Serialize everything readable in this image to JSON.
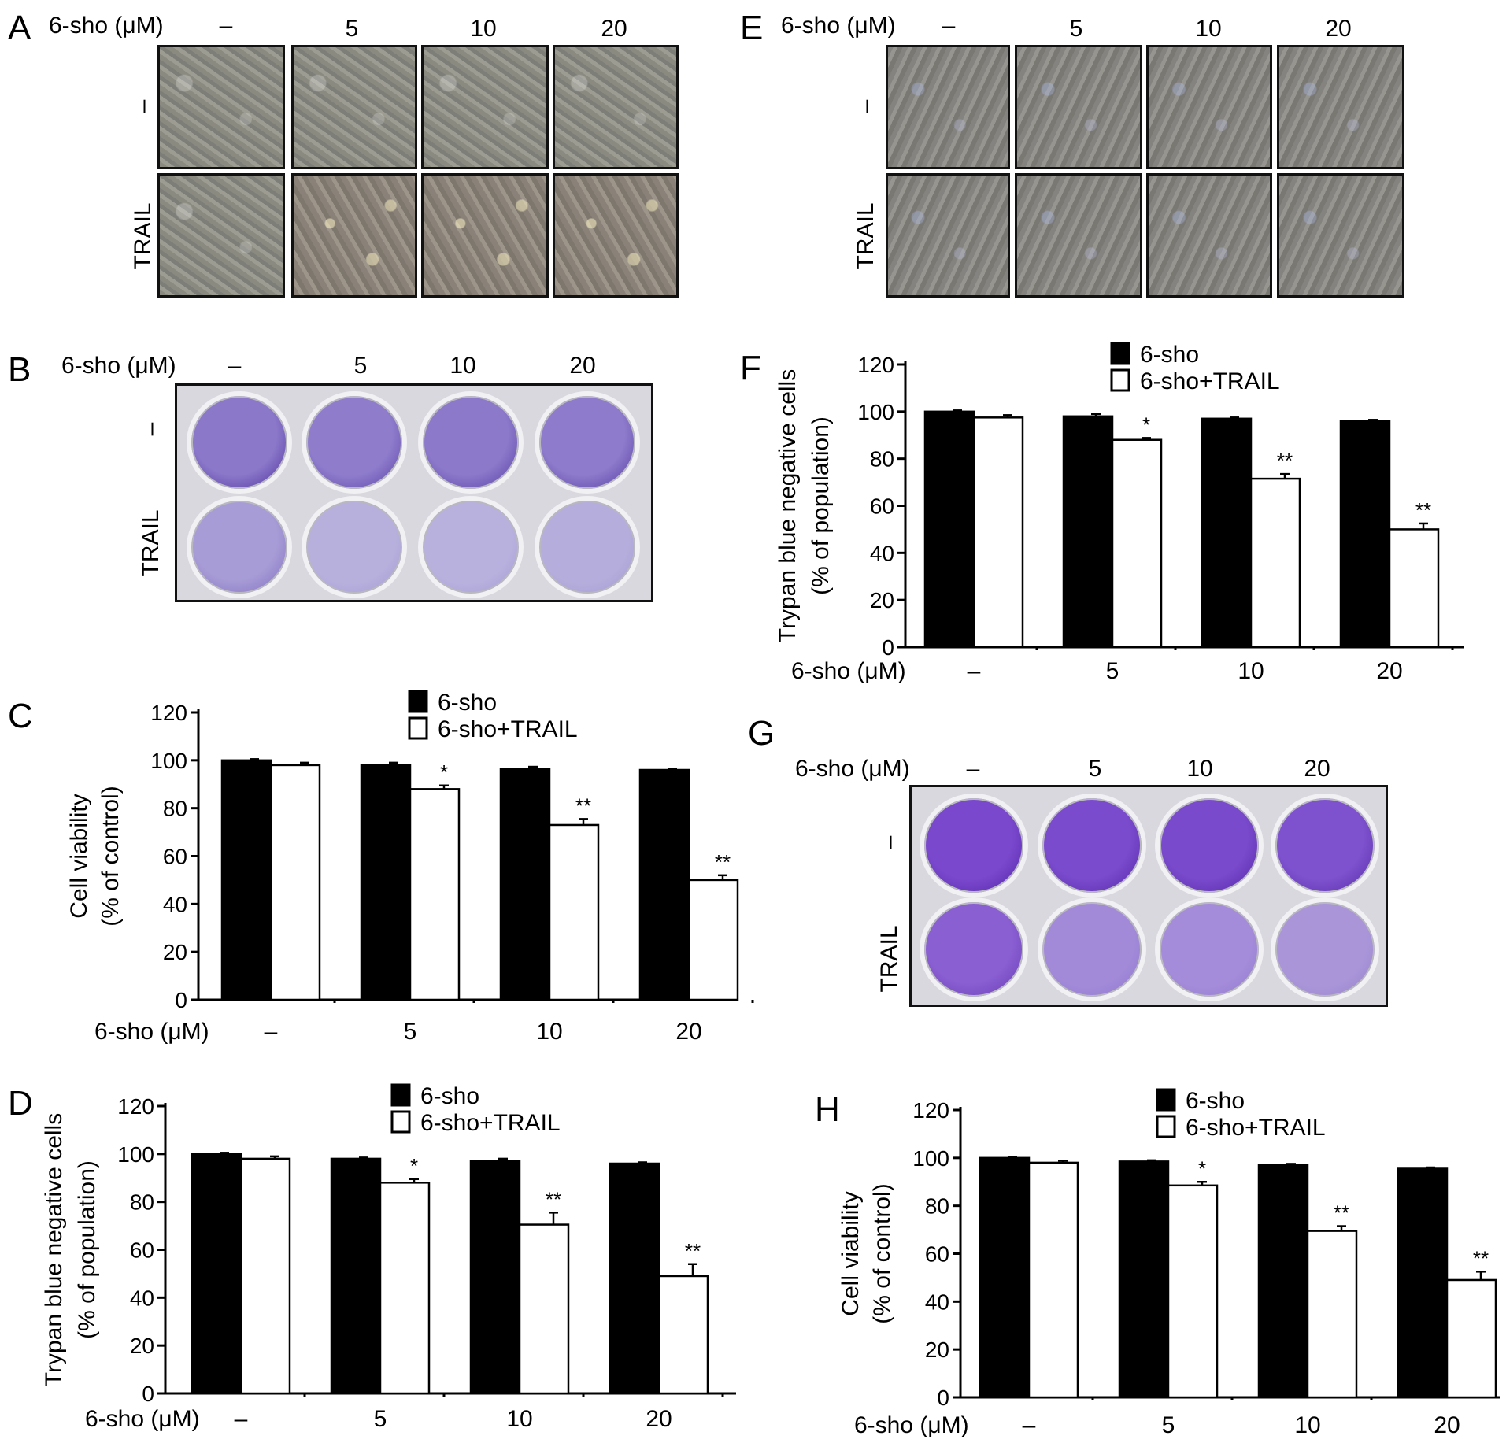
{
  "panel_letters": [
    "A",
    "B",
    "C",
    "D",
    "E",
    "F",
    "G",
    "H"
  ],
  "dose_label": "6-sho (μM)",
  "dose_levels": [
    "–",
    "5",
    "10",
    "20"
  ],
  "row_labels": [
    "–",
    "TRAIL"
  ],
  "chart_data": [
    {
      "panel": "C",
      "type": "bar",
      "ylabel_line1": "Cell viability",
      "ylabel_line2": "(% of control)",
      "xlabel": "6-sho (μM)",
      "categories": [
        "–",
        "5",
        "10",
        "20"
      ],
      "ylim": [
        0,
        120
      ],
      "yticks": [
        "0",
        "20",
        "40",
        "60",
        "80",
        "100",
        "120"
      ],
      "legend_placement": "top",
      "series": [
        {
          "name": "6-sho",
          "color": "#000000",
          "values": [
            100,
            98,
            96.5,
            96
          ],
          "errors": [
            0.5,
            1,
            0.8,
            0.5
          ]
        },
        {
          "name": "6-sho+TRAIL",
          "color": "#ffffff",
          "values": [
            98,
            88,
            73,
            50
          ],
          "errors": [
            1,
            1.5,
            2.5,
            2
          ]
        }
      ],
      "annotations": [
        "",
        "*",
        "**",
        "**"
      ]
    },
    {
      "panel": "D",
      "type": "bar",
      "ylabel_line1": "Trypan blue negative cells",
      "ylabel_line2": "(% of population)",
      "xlabel": "6-sho (μM)",
      "categories": [
        "–",
        "5",
        "10",
        "20"
      ],
      "ylim": [
        0,
        120
      ],
      "yticks": [
        "0",
        "20",
        "40",
        "60",
        "80",
        "100",
        "120"
      ],
      "legend_placement": "top",
      "series": [
        {
          "name": "6-sho",
          "color": "#000000",
          "values": [
            100,
            98,
            97,
            96
          ],
          "errors": [
            0.5,
            0.5,
            1,
            0.5
          ]
        },
        {
          "name": "6-sho+TRAIL",
          "color": "#ffffff",
          "values": [
            98,
            88,
            70.5,
            49
          ],
          "errors": [
            1,
            1.5,
            5,
            5
          ]
        }
      ],
      "annotations": [
        "",
        "*",
        "**",
        "**"
      ]
    },
    {
      "panel": "F",
      "type": "bar",
      "ylabel_line1": "Trypan blue negative cells",
      "ylabel_line2": "(% of population)",
      "xlabel": "6-sho (μM)",
      "categories": [
        "–",
        "5",
        "10",
        "20"
      ],
      "ylim": [
        0,
        120
      ],
      "yticks": [
        "0",
        "20",
        "40",
        "60",
        "80",
        "100",
        "120"
      ],
      "legend_placement": "top",
      "series": [
        {
          "name": "6-sho",
          "color": "#000000",
          "values": [
            100,
            98,
            97,
            96
          ],
          "errors": [
            0.5,
            1,
            0.5,
            0.5
          ]
        },
        {
          "name": "6-sho+TRAIL",
          "color": "#ffffff",
          "values": [
            97.5,
            88,
            71.5,
            50
          ],
          "errors": [
            1,
            0.8,
            2,
            2.5
          ]
        }
      ],
      "annotations": [
        "",
        "*",
        "**",
        "**"
      ]
    },
    {
      "panel": "H",
      "type": "bar",
      "ylabel_line1": "Cell viability",
      "ylabel_line2": "(% of control)",
      "xlabel": "6-sho (μM)",
      "categories": [
        "–",
        "5",
        "10",
        "20"
      ],
      "ylim": [
        0,
        120
      ],
      "yticks": [
        "0",
        "20",
        "40",
        "60",
        "80",
        "100",
        "120"
      ],
      "legend_placement": "top",
      "series": [
        {
          "name": "6-sho",
          "color": "#000000",
          "values": [
            100,
            98.5,
            97,
            95.5
          ],
          "errors": [
            0.3,
            0.5,
            0.5,
            0.5
          ]
        },
        {
          "name": "6-sho+TRAIL",
          "color": "#ffffff",
          "values": [
            98,
            88.5,
            69.5,
            49
          ],
          "errors": [
            0.8,
            1.5,
            2,
            3.5
          ]
        }
      ],
      "annotations": [
        "",
        "*",
        "**",
        "**"
      ]
    }
  ]
}
